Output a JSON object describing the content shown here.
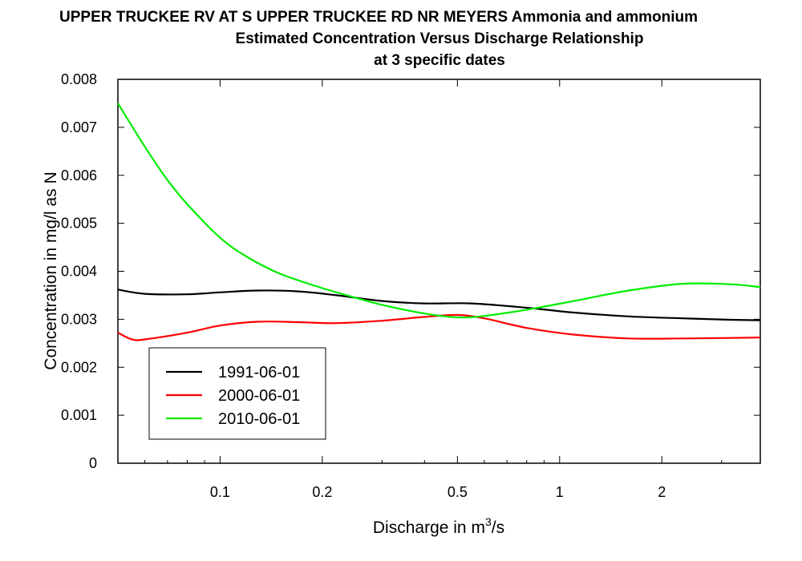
{
  "chart_data": {
    "type": "line",
    "title_lines": [
      "UPPER TRUCKEE RV AT S UPPER TRUCKEE RD NR MEYERS    Ammonia and ammonium",
      "Estimated Concentration Versus Discharge Relationship",
      "at 3 specific dates"
    ],
    "xlabel": "Discharge in m",
    "xlabel_superscript": "3",
    "xlabel_suffix": "/s",
    "ylabel": "Concentration in mg/l as N",
    "x_scale": "log",
    "xlim": [
      0.05,
      3.9
    ],
    "ylim": [
      0,
      0.008
    ],
    "x_ticks": [
      0.1,
      0.2,
      0.5,
      1,
      2
    ],
    "x_tick_labels": [
      "0.1",
      "0.2",
      "0.5",
      "1",
      "2"
    ],
    "y_ticks": [
      0,
      0.001,
      0.002,
      0.003,
      0.004,
      0.005,
      0.006,
      0.007,
      0.008
    ],
    "y_tick_labels": [
      "0",
      "0.001",
      "0.002",
      "0.003",
      "0.004",
      "0.005",
      "0.006",
      "0.007",
      "0.008"
    ],
    "grid": false,
    "legend_position": "bottom-left",
    "series": [
      {
        "name": "1991-06-01",
        "color": "#000000",
        "x": [
          0.05,
          0.06,
          0.08,
          0.1,
          0.13,
          0.17,
          0.22,
          0.3,
          0.4,
          0.55,
          0.8,
          1.1,
          1.6,
          2.3,
          3.2,
          3.9
        ],
        "y": [
          0.00362,
          0.00353,
          0.00352,
          0.00356,
          0.0036,
          0.00358,
          0.0035,
          0.00338,
          0.00333,
          0.00333,
          0.00324,
          0.00314,
          0.00306,
          0.00302,
          0.00299,
          0.00298
        ]
      },
      {
        "name": "2000-06-01",
        "color": "#ff0000",
        "x": [
          0.05,
          0.055,
          0.06,
          0.08,
          0.1,
          0.13,
          0.17,
          0.22,
          0.3,
          0.4,
          0.5,
          0.6,
          0.8,
          1.1,
          1.6,
          2.3,
          3.2,
          3.9
        ],
        "y": [
          0.00272,
          0.00258,
          0.00258,
          0.00272,
          0.00287,
          0.00295,
          0.00294,
          0.00292,
          0.00297,
          0.00305,
          0.00309,
          0.00302,
          0.00282,
          0.00268,
          0.0026,
          0.0026,
          0.00261,
          0.00262
        ]
      },
      {
        "name": "2010-06-01",
        "color": "#00ee00",
        "x": [
          0.05,
          0.06,
          0.07,
          0.08,
          0.1,
          0.12,
          0.15,
          0.2,
          0.25,
          0.3,
          0.4,
          0.5,
          0.6,
          0.8,
          1.1,
          1.6,
          2.3,
          3.2,
          3.9
        ],
        "y": [
          0.0075,
          0.0066,
          0.0059,
          0.0054,
          0.0047,
          0.0043,
          0.00395,
          0.00365,
          0.00345,
          0.0033,
          0.00312,
          0.00304,
          0.00307,
          0.0032,
          0.00338,
          0.0036,
          0.00374,
          0.00373,
          0.00367
        ]
      }
    ]
  }
}
